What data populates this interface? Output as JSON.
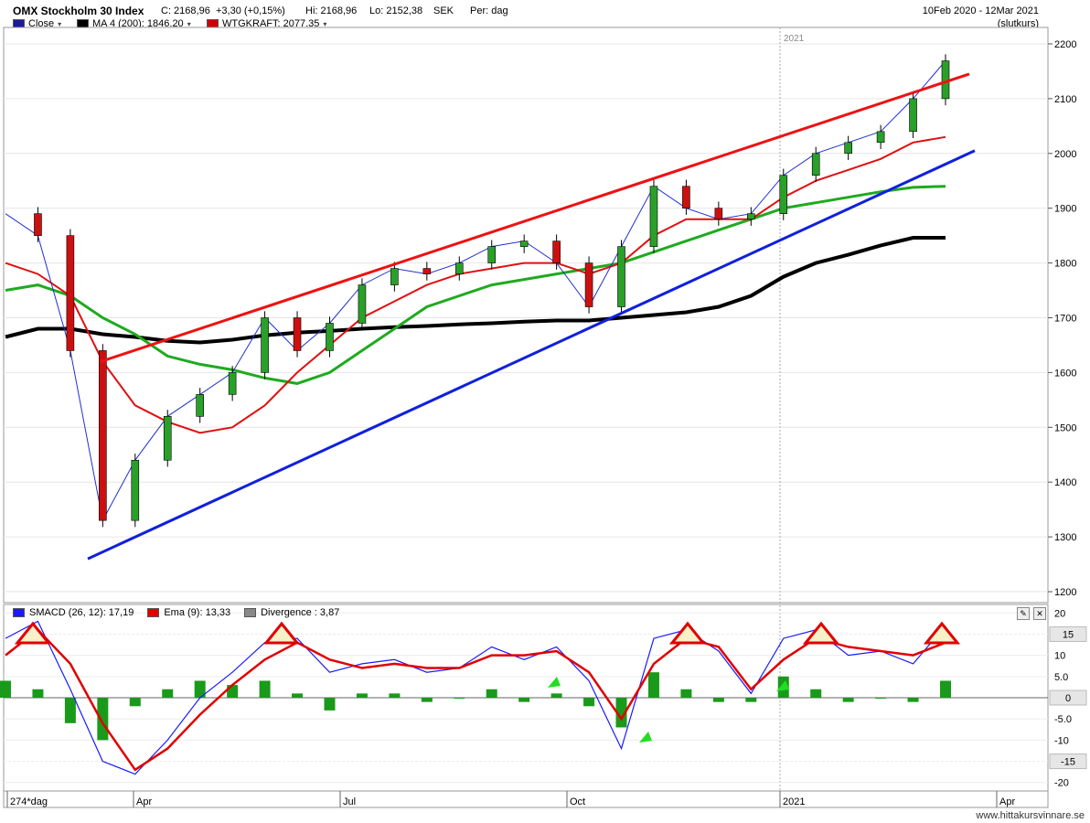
{
  "header": {
    "title": "OMX Stockholm 30 Index",
    "close": "C: 2168,96",
    "change": "+3,30 (+0,15%)",
    "high": "Hi: 2168,96",
    "low": "Lo: 2152,38",
    "currency": "SEK",
    "period": "Per: dag",
    "date_range": "10Feb 2020 - 12Mar 2021",
    "price_type": "(slutkurs)"
  },
  "legend": [
    {
      "label": "Close",
      "color": "#1a1aa0"
    },
    {
      "label": "MA 4 (200): 1846.20",
      "color": "#000000"
    },
    {
      "label": "WTGKRAFT: 2077.35",
      "color": "#d00000"
    }
  ],
  "lower_legend": [
    {
      "label": "SMACD (26, 12): 17,19",
      "color": "#1a1aff"
    },
    {
      "label": "Ema (9): 13,33",
      "color": "#e00000"
    },
    {
      "label": "Divergence : 3,87",
      "color": "#888888"
    }
  ],
  "year_marker": "2021",
  "x_axis": {
    "first_label": "274*dag",
    "labels": [
      "Apr",
      "Jul",
      "Oct",
      "2021",
      "Apr"
    ]
  },
  "watermark": "www.hittakursvinnare.se",
  "colors": {
    "up_candle": "#2aa02a",
    "down_candle": "#cc1010",
    "ma_long": "#000000",
    "ma_mid": "#1faa1f",
    "ma_short": "#e01010",
    "ma_fast": "#2030d0",
    "trend_upper": "#ee1111",
    "trend_lower": "#1020dd",
    "macd": "#1a1aff",
    "ema": "#e00000",
    "divergence": "#1a9a1a"
  },
  "chart_data": [
    {
      "type": "line",
      "title": "OMX Stockholm 30 Index",
      "ylim": [
        1180,
        2230
      ],
      "y_ticks": [
        "2200",
        "2100",
        "2000",
        "1900",
        "1800",
        "1700",
        "1600",
        "1500",
        "1400",
        "1300",
        "1200"
      ],
      "x": [
        "2020-02-10",
        "2020-02-24",
        "2020-03-09",
        "2020-03-23",
        "2020-04-06",
        "2020-04-20",
        "2020-05-04",
        "2020-05-18",
        "2020-06-01",
        "2020-06-15",
        "2020-06-29",
        "2020-07-13",
        "2020-07-27",
        "2020-08-10",
        "2020-08-24",
        "2020-09-07",
        "2020-09-21",
        "2020-10-05",
        "2020-10-19",
        "2020-11-02",
        "2020-11-16",
        "2020-11-30",
        "2020-12-14",
        "2020-12-28",
        "2021-01-11",
        "2021-01-25",
        "2021-02-08",
        "2021-02-22",
        "2021-03-08",
        "2021-03-12"
      ],
      "series": [
        {
          "name": "Close",
          "values": [
            1890,
            1850,
            1640,
            1330,
            1440,
            1520,
            1560,
            1600,
            1700,
            1640,
            1690,
            1760,
            1790,
            1780,
            1800,
            1830,
            1840,
            1800,
            1720,
            1830,
            1940,
            1900,
            1880,
            1890,
            1960,
            2000,
            2020,
            2040,
            2100,
            2169
          ]
        },
        {
          "name": "MA 200",
          "values": [
            1665,
            1680,
            1680,
            1670,
            1665,
            1658,
            1655,
            1660,
            1668,
            1673,
            1676,
            1680,
            1683,
            1685,
            1688,
            1690,
            1693,
            1695,
            1695,
            1700,
            1705,
            1710,
            1720,
            1740,
            1775,
            1800,
            1815,
            1832,
            1846,
            1846
          ]
        },
        {
          "name": "MA 50",
          "values": [
            1750,
            1760,
            1740,
            1700,
            1670,
            1630,
            1615,
            1605,
            1590,
            1580,
            1600,
            1640,
            1680,
            1720,
            1740,
            1760,
            1770,
            1780,
            1790,
            1800,
            1820,
            1840,
            1860,
            1880,
            1900,
            1910,
            1920,
            1930,
            1938,
            1940
          ]
        },
        {
          "name": "MA 20",
          "values": [
            1800,
            1780,
            1740,
            1620,
            1540,
            1510,
            1490,
            1500,
            1540,
            1600,
            1650,
            1700,
            1730,
            1760,
            1780,
            1790,
            1800,
            1800,
            1780,
            1800,
            1850,
            1880,
            1880,
            1880,
            1920,
            1950,
            1970,
            1990,
            2020,
            2030
          ]
        },
        {
          "name": "Trend upper",
          "values": [
            null,
            null,
            1620,
            null,
            null,
            null,
            null,
            null,
            null,
            null,
            null,
            null,
            null,
            null,
            null,
            null,
            null,
            null,
            null,
            null,
            null,
            null,
            null,
            null,
            null,
            null,
            null,
            null,
            null,
            2145
          ]
        },
        {
          "name": "Trend lower",
          "values": [
            null,
            null,
            1260,
            null,
            null,
            null,
            null,
            null,
            null,
            null,
            null,
            null,
            null,
            null,
            null,
            null,
            null,
            null,
            null,
            null,
            null,
            null,
            null,
            null,
            null,
            null,
            null,
            null,
            null,
            2005
          ]
        }
      ]
    },
    {
      "type": "line",
      "title": "SMACD (26, 12)",
      "ylim": [
        -22,
        22
      ],
      "y_ticks": [
        "20",
        "15",
        "10",
        "5.0",
        "0",
        "-5.0",
        "-10",
        "-15",
        "-20"
      ],
      "x": [
        "2020-02-10",
        "2020-02-24",
        "2020-03-09",
        "2020-03-23",
        "2020-04-06",
        "2020-04-20",
        "2020-05-04",
        "2020-05-18",
        "2020-06-01",
        "2020-06-15",
        "2020-06-29",
        "2020-07-13",
        "2020-07-27",
        "2020-08-10",
        "2020-08-24",
        "2020-09-07",
        "2020-09-21",
        "2020-10-05",
        "2020-10-19",
        "2020-11-02",
        "2020-11-16",
        "2020-11-30",
        "2020-12-14",
        "2020-12-28",
        "2021-01-11",
        "2021-01-25",
        "2021-02-08",
        "2021-02-22",
        "2021-03-08",
        "2021-03-12"
      ],
      "series": [
        {
          "name": "SMACD",
          "values": [
            14,
            18,
            2,
            -15,
            -18,
            -10,
            0,
            6,
            13,
            14,
            6,
            8,
            9,
            6,
            7,
            12,
            9,
            12,
            4,
            -12,
            14,
            16,
            11,
            1,
            14,
            16,
            10,
            11,
            8,
            17
          ]
        },
        {
          "name": "Ema",
          "values": [
            10,
            16,
            8,
            -6,
            -17,
            -12,
            -4,
            3,
            9,
            13,
            9,
            7,
            8,
            7,
            7,
            10,
            10,
            11,
            6,
            -5,
            8,
            14,
            12,
            2,
            9,
            14,
            12,
            11,
            10,
            13
          ]
        },
        {
          "name": "Divergence",
          "values": [
            4,
            2,
            -6,
            -10,
            -2,
            2,
            4,
            3,
            4,
            1,
            -3,
            1,
            1,
            -1,
            0,
            2,
            -1,
            1,
            -2,
            -7,
            6,
            2,
            -1,
            -1,
            5,
            2,
            -1,
            0,
            -1,
            4
          ]
        }
      ],
      "right_badges": [
        "15",
        "0",
        "-15"
      ]
    }
  ]
}
